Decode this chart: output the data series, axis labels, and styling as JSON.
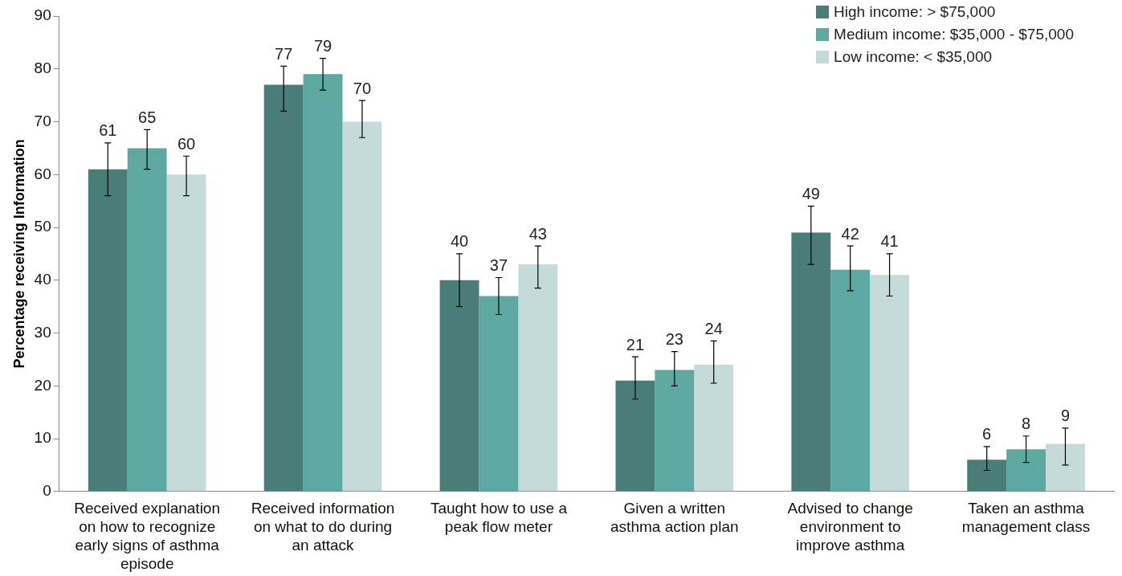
{
  "chart_data": {
    "type": "bar",
    "ylabel": "Percentage receiving Information",
    "categories": [
      "Received explanation on how to recognize early signs of asthma episode",
      "Received information on what to do during an attack",
      "Taught how to use a peak flow meter",
      "Given a written asthma action plan",
      "Advised to change environment to improve asthma",
      "Taken an asthma management class"
    ],
    "series": [
      {
        "name": "High income: > $75,000",
        "color": "#4a7d78",
        "values": [
          61,
          77,
          40,
          21,
          49,
          6
        ],
        "errors": [
          [
            56,
            66
          ],
          [
            72,
            80.5
          ],
          [
            35,
            45
          ],
          [
            17.5,
            25.5
          ],
          [
            43,
            54
          ],
          [
            4,
            8.5
          ]
        ]
      },
      {
        "name": "Medium income: $35,000 - $75,000",
        "color": "#5ea8a2",
        "values": [
          65,
          79,
          37,
          23,
          42,
          8
        ],
        "errors": [
          [
            61,
            68.5
          ],
          [
            76,
            82
          ],
          [
            33.5,
            40.5
          ],
          [
            20,
            26.5
          ],
          [
            38,
            46.5
          ],
          [
            5.5,
            10.5
          ]
        ]
      },
      {
        "name": "Low income: < $35,000",
        "color": "#c5dbd9",
        "values": [
          60,
          70,
          43,
          24,
          41,
          9
        ],
        "errors": [
          [
            56,
            63.5
          ],
          [
            67,
            74
          ],
          [
            38.5,
            46.5
          ],
          [
            20.5,
            28.5
          ],
          [
            37,
            45
          ],
          [
            5,
            12
          ]
        ]
      }
    ],
    "ylim": [
      0,
      90
    ],
    "yticks": [
      0,
      10,
      20,
      30,
      40,
      50,
      60,
      70,
      80,
      90
    ],
    "grid": false,
    "legend": "top right",
    "data_labels": true
  }
}
